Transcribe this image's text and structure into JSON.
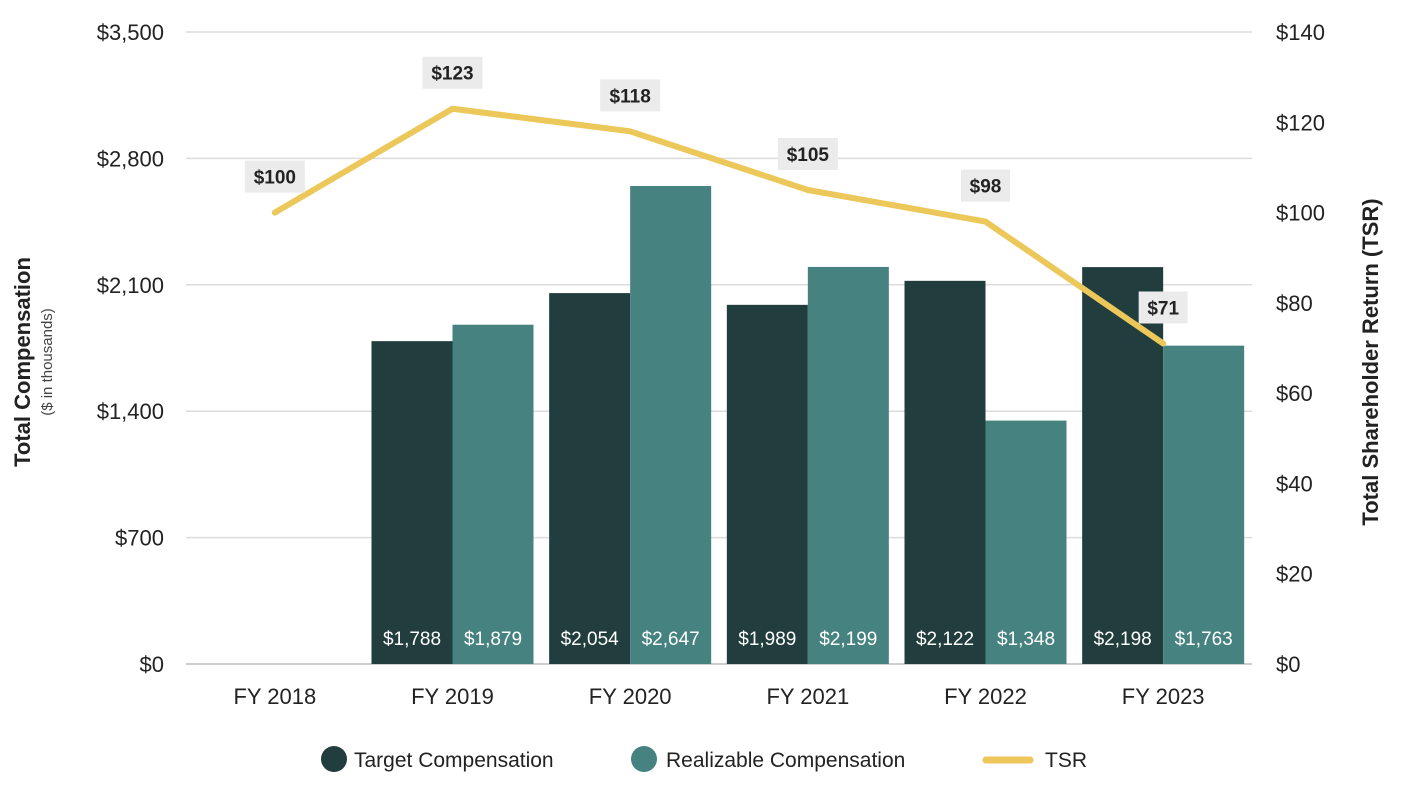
{
  "chart_data": {
    "type": "bar",
    "categories": [
      "FY 2018",
      "FY 2019",
      "FY 2020",
      "FY 2021",
      "FY 2022",
      "FY 2023"
    ],
    "series": [
      {
        "name": "Target Compensation",
        "type": "bar",
        "axis": "left",
        "color": "#223d3d",
        "values": [
          null,
          1788,
          2054,
          1989,
          2122,
          2198
        ],
        "labels": [
          "",
          "$1,788",
          "$2,054",
          "$1,989",
          "$2,122",
          "$2,198"
        ]
      },
      {
        "name": "Realizable Compensation",
        "type": "bar",
        "axis": "left",
        "color": "#46827f",
        "values": [
          null,
          1879,
          2647,
          2199,
          1348,
          1763
        ],
        "labels": [
          "",
          "$1,879",
          "$2,647",
          "$2,199",
          "$1,348",
          "$1,763"
        ]
      },
      {
        "name": "TSR",
        "type": "line",
        "axis": "right",
        "color": "#ecc75a",
        "values": [
          100,
          123,
          118,
          105,
          98,
          71
        ],
        "labels": [
          "$100",
          "$123",
          "$118",
          "$105",
          "$98",
          "$71"
        ]
      }
    ],
    "y_left": {
      "title": "Total Compensation",
      "subtitle": "($ in thousands)",
      "ylim": [
        0,
        3500
      ],
      "ticks": [
        0,
        700,
        1400,
        2100,
        2800,
        3500
      ],
      "tick_labels": [
        "$0",
        "$700",
        "$1,400",
        "$2,100",
        "$2,800",
        "$3,500"
      ]
    },
    "y_right": {
      "title": "Total Shareholder Return  (TSR)",
      "ylim": [
        0,
        140
      ],
      "ticks": [
        0,
        20,
        40,
        60,
        80,
        100,
        120,
        140
      ],
      "tick_labels": [
        "$0",
        "$20",
        "$40",
        "$60",
        "$80",
        "$100",
        "$120",
        "$140"
      ]
    },
    "grid": true,
    "legend": {
      "placement": "bottom",
      "items": [
        "Target Compensation",
        "Realizable Compensation",
        "TSR"
      ]
    }
  }
}
